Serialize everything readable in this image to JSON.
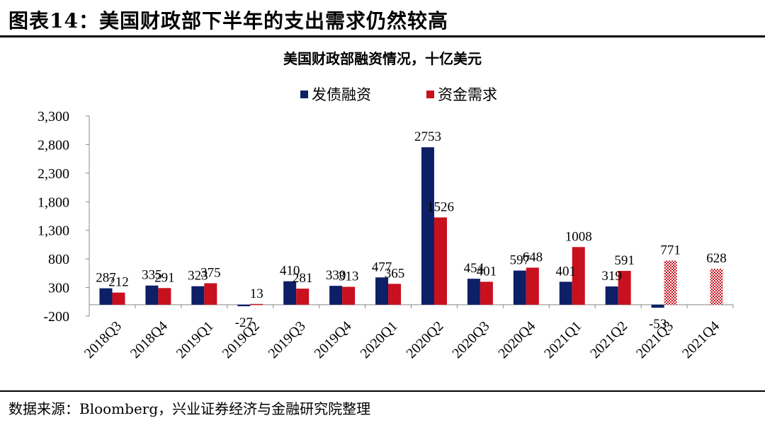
{
  "figure_title": "图表14：美国财政部下半年的支出需求仍然较高",
  "source": "数据来源：Bloomberg，兴业证券经济与金融研究院整理",
  "colors": {
    "debt": "#0d1f66",
    "demand": "#c8101e",
    "axis": "#888888"
  },
  "chart_data": {
    "type": "bar",
    "title": "美国财政部融资情况，十亿美元",
    "xlabel": "",
    "ylabel": "",
    "ylim": [
      -200,
      3300
    ],
    "yticks": [
      -200,
      300,
      800,
      1300,
      1800,
      2300,
      2800,
      3300
    ],
    "ytick_labels": [
      "-200",
      "300",
      "800",
      "1,300",
      "1,800",
      "2,300",
      "2,800",
      "3,300"
    ],
    "grid": false,
    "legend_position": "top-center",
    "categories": [
      "2018Q3",
      "2018Q4",
      "2019Q1",
      "2019Q2",
      "2019Q3",
      "2019Q4",
      "2020Q1",
      "2020Q2",
      "2020Q3",
      "2020Q4",
      "2021Q1",
      "2021Q2",
      "2021Q3",
      "2021Q4"
    ],
    "series": [
      {
        "name": "发债融资",
        "values": [
          287,
          335,
          323,
          -27,
          410,
          330,
          477,
          2753,
          454,
          597,
          401,
          319,
          -53,
          null
        ]
      },
      {
        "name": "资金需求",
        "values": [
          212,
          291,
          375,
          13,
          281,
          313,
          365,
          1526,
          401,
          648,
          1008,
          591,
          771,
          628
        ],
        "patterned": [
          false,
          false,
          false,
          false,
          false,
          false,
          false,
          false,
          false,
          false,
          false,
          false,
          true,
          true
        ]
      }
    ]
  }
}
